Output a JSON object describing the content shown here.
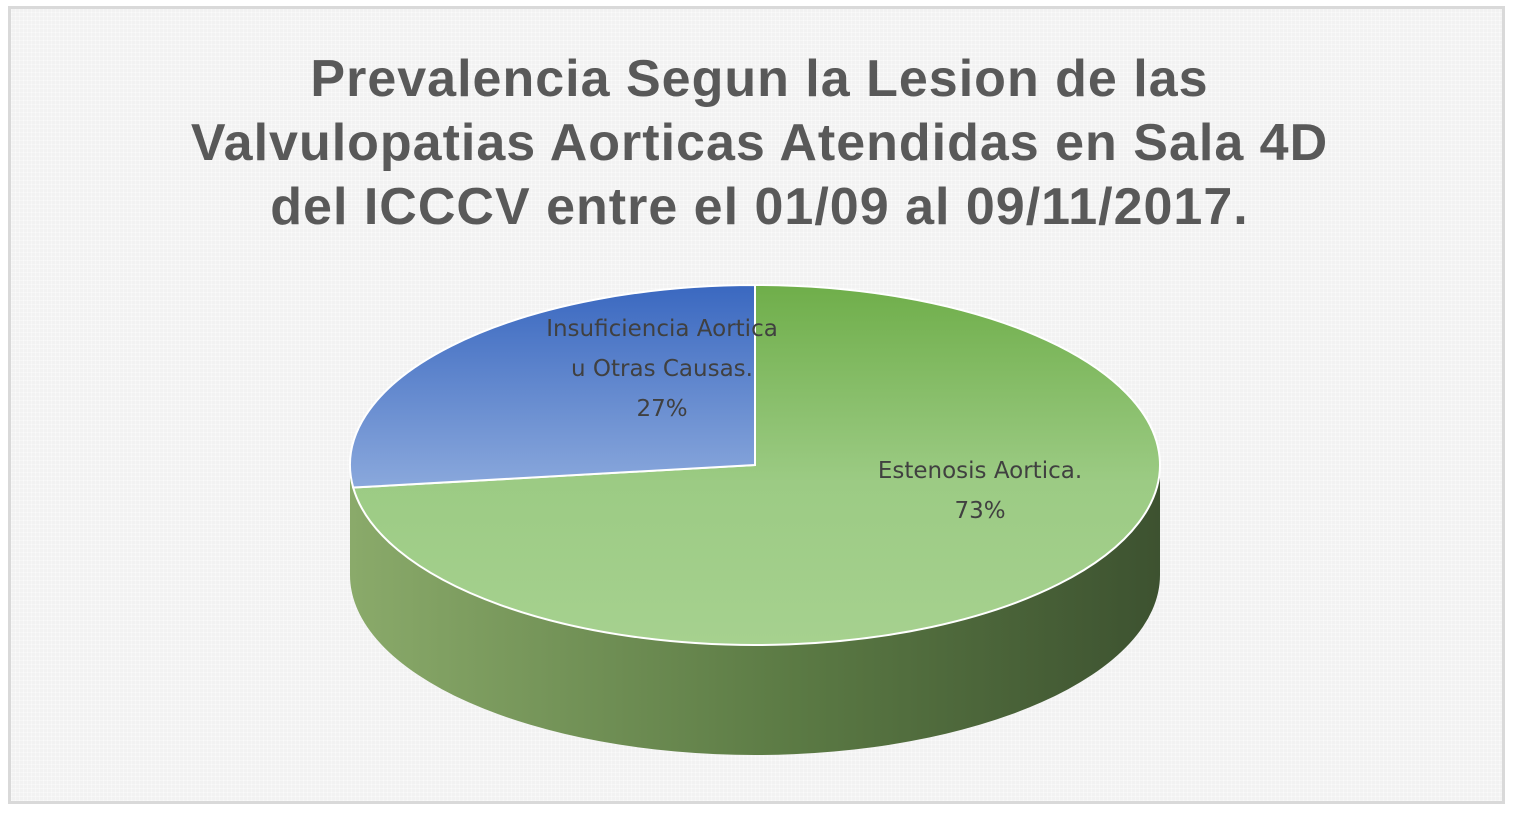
{
  "chart_data": {
    "type": "pie",
    "title": "Prevalencia Segun la Lesion de las Valvulopatias Aorticas Atendidas en Sala 4D del ICCCV entre el 01/09 al 09/11/2017.",
    "slices": [
      {
        "label_lines": [
          "Estenosis Aortica."
        ],
        "percent_label": "73%",
        "value": 73,
        "color": "#70ad47"
      },
      {
        "label_lines": [
          "Insuficiencia Aortica",
          "u Otras Causas."
        ],
        "percent_label": "27%",
        "value": 27,
        "color": "#4472c4"
      }
    ],
    "legend": "none",
    "style": "3d"
  }
}
